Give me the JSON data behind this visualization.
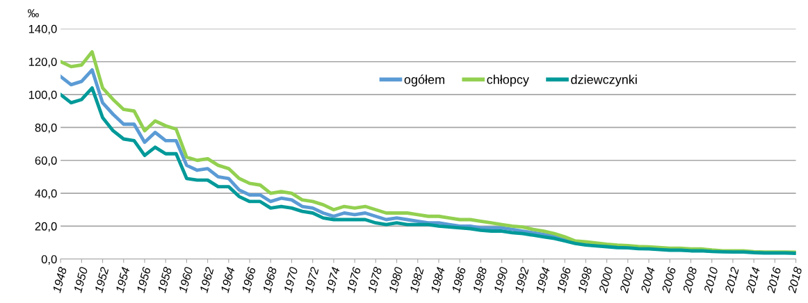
{
  "chart_data": {
    "type": "line",
    "ylabel": "‰",
    "x": [
      1948,
      1949,
      1950,
      1951,
      1952,
      1953,
      1954,
      1955,
      1956,
      1957,
      1958,
      1959,
      1960,
      1961,
      1962,
      1963,
      1964,
      1965,
      1966,
      1967,
      1968,
      1969,
      1970,
      1971,
      1972,
      1973,
      1974,
      1975,
      1976,
      1977,
      1978,
      1979,
      1980,
      1981,
      1982,
      1983,
      1984,
      1985,
      1986,
      1987,
      1988,
      1989,
      1990,
      1991,
      1992,
      1993,
      1994,
      1995,
      1996,
      1997,
      1998,
      1999,
      2000,
      2001,
      2002,
      2003,
      2004,
      2005,
      2006,
      2007,
      2008,
      2009,
      2010,
      2011,
      2012,
      2013,
      2014,
      2015,
      2016,
      2017,
      2018
    ],
    "series": [
      {
        "name": "ogółem",
        "color": "#5b9bd5",
        "values": [
          111,
          106,
          108,
          115,
          95,
          88,
          82,
          82,
          71,
          77,
          72,
          72,
          57,
          54,
          55,
          50,
          49,
          42,
          39,
          39,
          35,
          37,
          36,
          32,
          31,
          28,
          26,
          28,
          27,
          28,
          26,
          24,
          25,
          24,
          23,
          22,
          22,
          21,
          20,
          20,
          19,
          19,
          19,
          18,
          17,
          16,
          15,
          14,
          12,
          10,
          9.5,
          8.9,
          8.1,
          7.7,
          7.5,
          7.0,
          6.8,
          6.4,
          6.0,
          6.0,
          5.6,
          5.6,
          5.0,
          4.7,
          4.6,
          4.6,
          4.2,
          4.0,
          4.0,
          4.0,
          3.8
        ]
      },
      {
        "name": "chłopcy",
        "color": "#92d050",
        "values": [
          120,
          117,
          118,
          126,
          104,
          97,
          91,
          90,
          78,
          84,
          81,
          79,
          62,
          60,
          61,
          57,
          55,
          49,
          46,
          45,
          40,
          41,
          40,
          36,
          35,
          33,
          30,
          32,
          31,
          32,
          30,
          28,
          28,
          28,
          27,
          26,
          26,
          25,
          24,
          24,
          23,
          22,
          21,
          20,
          19.5,
          18,
          17,
          15.5,
          13.5,
          11,
          10.5,
          9.8,
          9,
          8.5,
          8.2,
          7.7,
          7.4,
          7,
          6.6,
          6.6,
          6.2,
          6.2,
          5.5,
          5.0,
          5.0,
          5.0,
          4.5,
          4.3,
          4.3,
          4.3,
          4.2
        ]
      },
      {
        "name": "dziewczynki",
        "color": "#009999",
        "values": [
          100,
          95,
          97,
          104,
          86,
          78,
          73,
          72,
          63,
          68,
          64,
          64,
          49,
          48,
          48,
          44,
          44,
          38,
          35,
          35,
          31,
          32,
          31,
          29,
          28,
          25,
          24,
          24,
          24,
          24,
          22,
          21,
          22,
          21,
          21,
          21,
          20,
          19.5,
          19,
          18.5,
          17.5,
          17,
          17,
          16,
          15.5,
          14.5,
          13.5,
          12.5,
          11,
          9.5,
          8.5,
          8,
          7.5,
          7,
          6.8,
          6.3,
          6.2,
          5.8,
          5.4,
          5.4,
          5.0,
          5.0,
          4.6,
          4.4,
          4.3,
          4.3,
          3.9,
          3.7,
          3.7,
          3.7,
          3.5
        ]
      }
    ],
    "xlim": [
      1948,
      2018
    ],
    "xticks": [
      1948,
      1950,
      1952,
      1954,
      1956,
      1958,
      1960,
      1962,
      1964,
      1966,
      1968,
      1970,
      1972,
      1974,
      1976,
      1978,
      1980,
      1982,
      1984,
      1986,
      1988,
      1990,
      1992,
      1994,
      1996,
      1998,
      2000,
      2002,
      2004,
      2006,
      2008,
      2010,
      2012,
      2014,
      2016,
      2018
    ],
    "ylim": [
      0,
      140
    ],
    "yticks": [
      {
        "value": 0,
        "label": "0,0"
      },
      {
        "value": 20,
        "label": "20,0"
      },
      {
        "value": 40,
        "label": "40,0"
      },
      {
        "value": 60,
        "label": "60,0"
      },
      {
        "value": 80,
        "label": "80,0"
      },
      {
        "value": 100,
        "label": "100,0"
      },
      {
        "value": 120,
        "label": "120,0"
      },
      {
        "value": 140,
        "label": "140,0"
      }
    ],
    "grid": "y",
    "legend": "top right",
    "marker": "none",
    "line_style": "solid"
  }
}
